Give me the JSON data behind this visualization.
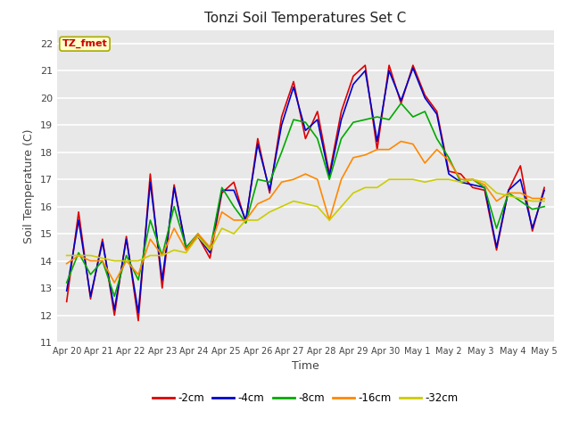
{
  "title": "Tonzi Soil Temperatures Set C",
  "xlabel": "Time",
  "ylabel": "Soil Temperature (C)",
  "ylim": [
    11.0,
    22.5
  ],
  "yticks": [
    11.0,
    12.0,
    13.0,
    14.0,
    15.0,
    16.0,
    17.0,
    18.0,
    19.0,
    20.0,
    21.0,
    22.0
  ],
  "fig_bg": "#ffffff",
  "plot_bg": "#e8e8e8",
  "annotation_label": "TZ_fmet",
  "annotation_color": "#cc0000",
  "annotation_bg": "#ffffcc",
  "annotation_edge": "#aaaa00",
  "series_order": [
    "-2cm",
    "-4cm",
    "-8cm",
    "-16cm",
    "-32cm"
  ],
  "series": {
    "-2cm": {
      "color": "#dd0000",
      "lw": 1.2
    },
    "-4cm": {
      "color": "#0000cc",
      "lw": 1.2
    },
    "-8cm": {
      "color": "#00aa00",
      "lw": 1.2
    },
    "-16cm": {
      "color": "#ff8800",
      "lw": 1.2
    },
    "-32cm": {
      "color": "#cccc00",
      "lw": 1.2
    }
  },
  "x_tick_labels": [
    "Apr 20",
    "Apr 21",
    "Apr 22",
    "Apr 23",
    "Apr 24",
    "Apr 25",
    "Apr 26",
    "Apr 27",
    "Apr 28",
    "Apr 29",
    "Apr 30",
    "May 1",
    "May 2",
    "May 3",
    "May 4",
    "May 5"
  ],
  "data": {
    "-2cm": [
      12.5,
      15.8,
      12.6,
      14.8,
      12.0,
      14.9,
      11.8,
      17.2,
      13.0,
      16.8,
      14.4,
      14.9,
      14.1,
      16.5,
      16.9,
      15.4,
      18.5,
      16.5,
      19.3,
      20.6,
      18.5,
      19.5,
      17.2,
      19.5,
      20.8,
      21.2,
      18.1,
      21.2,
      19.8,
      21.2,
      20.1,
      19.5,
      17.3,
      17.2,
      16.7,
      16.6,
      14.4,
      16.6,
      17.5,
      15.1,
      16.7
    ],
    "-4cm": [
      12.9,
      15.5,
      12.7,
      14.7,
      12.2,
      14.8,
      12.1,
      16.9,
      13.3,
      16.7,
      14.5,
      14.9,
      14.3,
      16.6,
      16.6,
      15.5,
      18.3,
      16.6,
      19.0,
      20.4,
      18.8,
      19.2,
      17.1,
      19.2,
      20.5,
      21.0,
      18.4,
      21.0,
      19.9,
      21.1,
      20.0,
      19.4,
      17.2,
      16.9,
      16.8,
      16.7,
      14.5,
      16.6,
      17.0,
      15.2,
      16.6
    ],
    "-8cm": [
      13.2,
      14.3,
      13.5,
      14.0,
      12.7,
      14.2,
      13.3,
      15.5,
      14.2,
      16.0,
      14.5,
      15.0,
      14.4,
      16.7,
      16.0,
      15.4,
      17.0,
      16.9,
      18.0,
      19.2,
      19.1,
      18.5,
      17.0,
      18.5,
      19.1,
      19.2,
      19.3,
      19.2,
      19.8,
      19.3,
      19.5,
      18.5,
      17.8,
      16.9,
      17.0,
      16.7,
      15.2,
      16.5,
      16.2,
      15.9,
      16.0
    ],
    "-16cm": [
      13.9,
      14.2,
      14.0,
      14.0,
      13.2,
      14.0,
      13.5,
      14.8,
      14.2,
      15.2,
      14.4,
      15.0,
      14.5,
      15.8,
      15.5,
      15.5,
      16.1,
      16.3,
      16.9,
      17.0,
      17.2,
      17.0,
      15.5,
      17.0,
      17.8,
      17.9,
      18.1,
      18.1,
      18.4,
      18.3,
      17.6,
      18.1,
      17.7,
      17.0,
      17.0,
      16.8,
      16.2,
      16.5,
      16.5,
      16.3,
      16.3
    ],
    "-32cm": [
      14.2,
      14.2,
      14.2,
      14.1,
      14.0,
      14.0,
      14.0,
      14.2,
      14.2,
      14.4,
      14.3,
      14.9,
      14.4,
      15.2,
      15.0,
      15.5,
      15.5,
      15.8,
      16.0,
      16.2,
      16.1,
      16.0,
      15.5,
      16.0,
      16.5,
      16.7,
      16.7,
      17.0,
      17.0,
      17.0,
      16.9,
      17.0,
      17.0,
      16.9,
      17.0,
      16.9,
      16.5,
      16.4,
      16.3,
      16.2,
      16.2
    ]
  }
}
